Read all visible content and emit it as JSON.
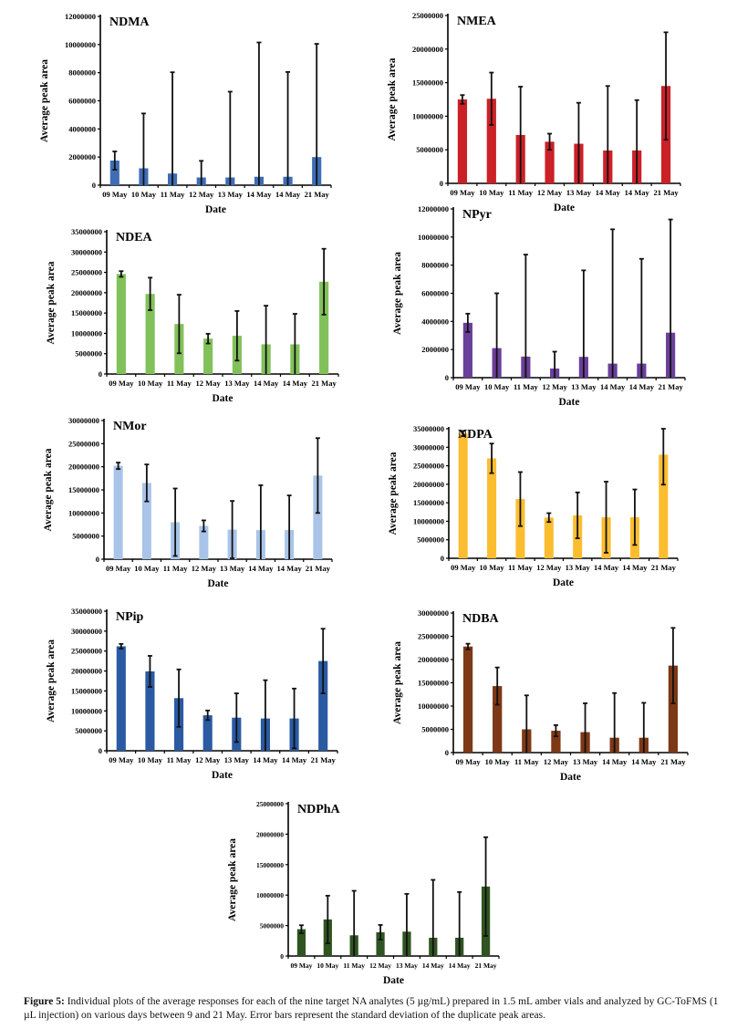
{
  "chart_data": [
    {
      "type": "bar",
      "title": "NDMA",
      "xlabel": "Date",
      "ylabel": "Average peak area",
      "categories": [
        "09 May",
        "10 May",
        "11 May",
        "12 May",
        "13 May",
        "14 May",
        "14 May",
        "21 May"
      ],
      "values": [
        1750000,
        1200000,
        830000,
        550000,
        550000,
        600000,
        600000,
        2000000
      ],
      "error": [
        650000,
        3900000,
        7200000,
        1180000,
        6100000,
        9550000,
        7450000,
        8050000
      ],
      "ylim": [
        0,
        12000000
      ],
      "yticks": [
        "0",
        "2000000",
        "4000000",
        "6000000",
        "8000000",
        "10000000",
        "12000000"
      ],
      "color": "#3e6db5",
      "grid": false
    },
    {
      "type": "bar",
      "title": "NMEA",
      "xlabel": "Date",
      "ylabel": "Average peak area",
      "categories": [
        "09 May",
        "10 May",
        "11 May",
        "12 May",
        "13 May",
        "14 May",
        "14 May",
        "21 May"
      ],
      "values": [
        12500000,
        12600000,
        7200000,
        6200000,
        5900000,
        4900000,
        4900000,
        14500000
      ],
      "error": [
        650000,
        3900000,
        7200000,
        1200000,
        6100000,
        9600000,
        7500000,
        8000000
      ],
      "ylim": [
        0,
        25000000
      ],
      "yticks": [
        "0",
        "5000000",
        "10000000",
        "15000000",
        "20000000",
        "25000000"
      ],
      "color": "#cc2027",
      "grid": false
    },
    {
      "type": "bar",
      "title": "NDEA",
      "xlabel": "Date",
      "ylabel": "Average peak area",
      "categories": [
        "09 May",
        "10 May",
        "11 May",
        "12 May",
        "13 May",
        "14 May",
        "14 May",
        "21 May"
      ],
      "values": [
        24600000,
        19700000,
        12300000,
        8700000,
        9400000,
        7300000,
        7300000,
        22700000
      ],
      "error": [
        700000,
        4000000,
        7200000,
        1200000,
        6100000,
        9500000,
        7500000,
        8100000
      ],
      "ylim": [
        0,
        35000000
      ],
      "yticks": [
        "0",
        "5000000",
        "10000000",
        "15000000",
        "20000000",
        "25000000",
        "30000000",
        "35000000"
      ],
      "color": "#82c15a",
      "grid": false
    },
    {
      "type": "bar",
      "title": "NPyr",
      "xlabel": "Date",
      "ylabel": "Average peak area",
      "categories": [
        "09 May",
        "10 May",
        "11 May",
        "12 May",
        "13 May",
        "14 May",
        "14 May",
        "21 May"
      ],
      "values": [
        3900000,
        2100000,
        1500000,
        650000,
        1480000,
        1000000,
        1000000,
        3200000
      ],
      "error": [
        650000,
        3900000,
        7250000,
        1200000,
        6150000,
        9550000,
        7450000,
        8050000
      ],
      "ylim": [
        0,
        12000000
      ],
      "yticks": [
        "0",
        "2000000",
        "4000000",
        "6000000",
        "8000000",
        "10000000",
        "12000000"
      ],
      "color": "#6a3f9a",
      "grid": false
    },
    {
      "type": "bar",
      "title": "NMor",
      "xlabel": "Date",
      "ylabel": "Average peak area",
      "categories": [
        "09 May",
        "10 May",
        "11 May",
        "12 May",
        "13 May",
        "14 May",
        "14 May",
        "21 May"
      ],
      "values": [
        20200000,
        16500000,
        8000000,
        7200000,
        6400000,
        6300000,
        6300000,
        18100000
      ],
      "error": [
        700000,
        4000000,
        7300000,
        1200000,
        6200000,
        9700000,
        7500000,
        8100000
      ],
      "ylim": [
        0,
        30000000
      ],
      "yticks": [
        "0",
        "5000000",
        "10000000",
        "15000000",
        "20000000",
        "25000000",
        "30000000"
      ],
      "color": "#a9c4e8",
      "grid": false
    },
    {
      "type": "bar",
      "title": "NDPA",
      "xlabel": "Date",
      "ylabel": "Average peak area",
      "categories": [
        "09 May",
        "10 May",
        "11 May",
        "12 May",
        "13 May",
        "14 May",
        "14 May",
        "21 May"
      ],
      "values": [
        33700000,
        27000000,
        16000000,
        11000000,
        11600000,
        11100000,
        11100000,
        28000000
      ],
      "error": [
        700000,
        4000000,
        7300000,
        1200000,
        6200000,
        9600000,
        7500000,
        8100000
      ],
      "ylim": [
        0,
        35000000
      ],
      "yticks": [
        "0",
        "5000000",
        "10000000",
        "15000000",
        "20000000",
        "25000000",
        "30000000",
        "35000000"
      ],
      "color": "#fbbd30",
      "grid": false
    },
    {
      "type": "bar",
      "title": "NPip",
      "xlabel": "Date",
      "ylabel": "Average peak area",
      "categories": [
        "09 May",
        "10 May",
        "11 May",
        "12 May",
        "13 May",
        "14 May",
        "14 May",
        "21 May"
      ],
      "values": [
        26200000,
        19900000,
        13200000,
        8900000,
        8300000,
        8100000,
        8100000,
        22500000
      ],
      "error": [
        600000,
        3900000,
        7200000,
        1200000,
        6100000,
        9600000,
        7500000,
        8100000
      ],
      "ylim": [
        0,
        35000000
      ],
      "yticks": [
        "0",
        "5000000",
        "10000000",
        "15000000",
        "20000000",
        "25000000",
        "30000000",
        "35000000"
      ],
      "color": "#2a5aa2",
      "grid": false
    },
    {
      "type": "bar",
      "title": "NDBA",
      "xlabel": "Date",
      "ylabel": "Average peak area",
      "categories": [
        "09 May",
        "10 May",
        "11 May",
        "12 May",
        "13 May",
        "14 May",
        "14 May",
        "21 May"
      ],
      "values": [
        22800000,
        14300000,
        5000000,
        4700000,
        4400000,
        3200000,
        3200000,
        18700000
      ],
      "error": [
        600000,
        4000000,
        7300000,
        1200000,
        6200000,
        9600000,
        7500000,
        8100000
      ],
      "ylim": [
        0,
        30000000
      ],
      "yticks": [
        "0",
        "5000000",
        "10000000",
        "15000000",
        "20000000",
        "25000000",
        "30000000"
      ],
      "color": "#7d3816",
      "grid": false
    },
    {
      "type": "bar",
      "title": "NDPhA",
      "xlabel": "Date",
      "ylabel": "Average peak area",
      "categories": [
        "09 May",
        "10 May",
        "11 May",
        "12 May",
        "13 May",
        "14 May",
        "14 May",
        "21 May"
      ],
      "values": [
        4400000,
        6000000,
        3400000,
        3900000,
        4000000,
        3000000,
        3000000,
        11400000
      ],
      "error": [
        650000,
        3900000,
        7300000,
        1200000,
        6200000,
        9500000,
        7500000,
        8100000
      ],
      "ylim": [
        0,
        25000000
      ],
      "yticks": [
        "0",
        "5000000",
        "10000000",
        "15000000",
        "20000000",
        "25000000"
      ],
      "color": "#2f5421",
      "grid": false
    }
  ],
  "caption": {
    "label": "Figure 5:",
    "text": " Individual plots of the average responses for each of the nine target NA analytes (5 µg/mL) prepared in 1.5 mL amber vials and analyzed by GC-ToFMS (1 µL injection) on various days between 9 and 21 May. Error bars represent the standard deviation of the duplicate peak areas."
  }
}
